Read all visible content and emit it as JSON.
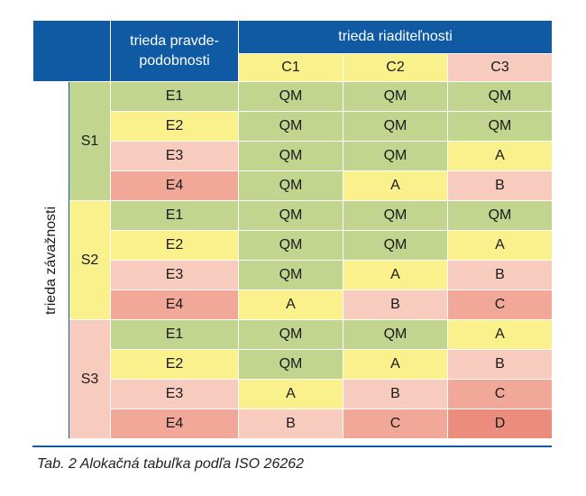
{
  "header": {
    "probability_class_line1": "trieda pravde-",
    "probability_class_line2": "podobnosti",
    "controllability_class": "trieda riaditeľnosti",
    "controllability_levels": [
      "C1",
      "C2",
      "C3"
    ]
  },
  "severity_axis_label": "trieda závažnosti",
  "colors": {
    "header_blue": "#0f5aa3",
    "QM": "#c2d58e",
    "A": "#faf08c",
    "B": "#f7cbbe",
    "C": "#f2a898",
    "D": "#ec8c7c",
    "C1_header": "#faf08c",
    "C2_header": "#faf08c",
    "C3_header": "#f7cbbe"
  },
  "severity_groups": [
    {
      "label": "S1",
      "color": "#c2d58e",
      "rows": [
        {
          "exposure": "E1",
          "exposure_color": "#c2d58e",
          "values": [
            "QM",
            "QM",
            "QM"
          ]
        },
        {
          "exposure": "E2",
          "exposure_color": "#faf08c",
          "values": [
            "QM",
            "QM",
            "QM"
          ]
        },
        {
          "exposure": "E3",
          "exposure_color": "#f7cbbe",
          "values": [
            "QM",
            "QM",
            "A"
          ]
        },
        {
          "exposure": "E4",
          "exposure_color": "#f2a898",
          "values": [
            "QM",
            "A",
            "B"
          ]
        }
      ]
    },
    {
      "label": "S2",
      "color": "#faf08c",
      "rows": [
        {
          "exposure": "E1",
          "exposure_color": "#c2d58e",
          "values": [
            "QM",
            "QM",
            "QM"
          ]
        },
        {
          "exposure": "E2",
          "exposure_color": "#faf08c",
          "values": [
            "QM",
            "QM",
            "A"
          ]
        },
        {
          "exposure": "E3",
          "exposure_color": "#f7cbbe",
          "values": [
            "QM",
            "A",
            "B"
          ]
        },
        {
          "exposure": "E4",
          "exposure_color": "#f2a898",
          "values": [
            "A",
            "B",
            "C"
          ]
        }
      ]
    },
    {
      "label": "S3",
      "color": "#f7cbbe",
      "rows": [
        {
          "exposure": "E1",
          "exposure_color": "#c2d58e",
          "values": [
            "QM",
            "QM",
            "A"
          ]
        },
        {
          "exposure": "E2",
          "exposure_color": "#faf08c",
          "values": [
            "QM",
            "A",
            "B"
          ]
        },
        {
          "exposure": "E3",
          "exposure_color": "#f7cbbe",
          "values": [
            "A",
            "B",
            "C"
          ]
        },
        {
          "exposure": "E4",
          "exposure_color": "#f2a898",
          "values": [
            "B",
            "C",
            "D"
          ]
        }
      ]
    }
  ],
  "caption": "Tab. 2 Alokačná tabuľka podľa ISO 26262"
}
